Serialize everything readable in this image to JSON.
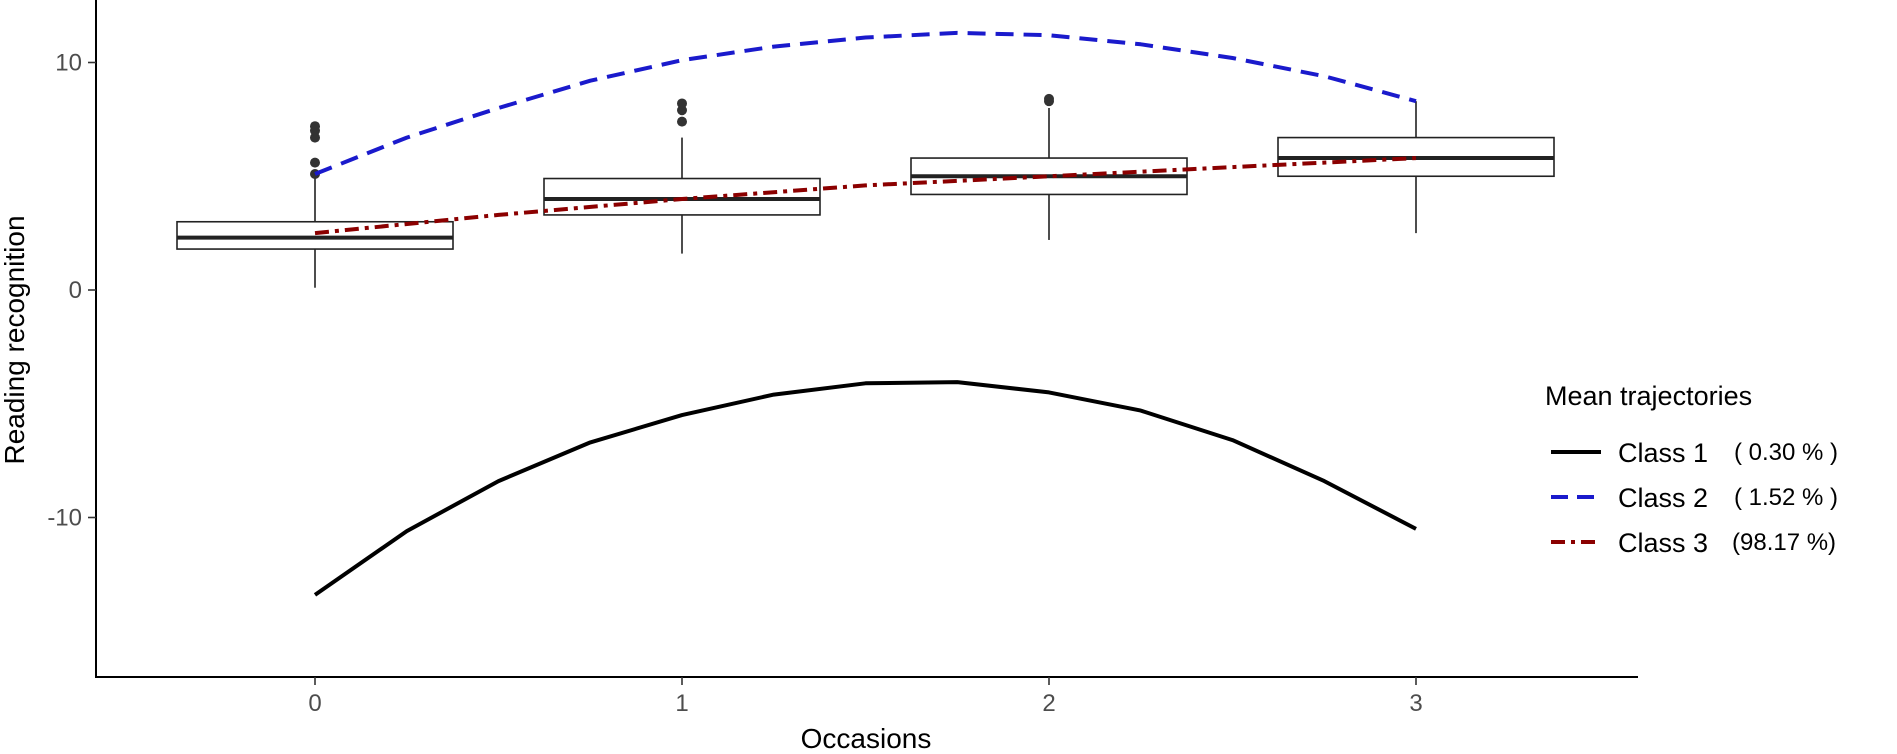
{
  "chart_data": {
    "type": "line",
    "xlabel": "Occasions",
    "ylabel": "Reading recognition",
    "x_ticks": [
      0,
      1,
      2,
      3
    ],
    "y_ticks": [
      -10,
      0,
      10
    ],
    "xlim": [
      -0.6,
      3.6
    ],
    "ylim": [
      -17,
      12.6
    ],
    "grid": false,
    "legend_position": "right",
    "legend_title": "Mean trajectories",
    "series": [
      {
        "name": "Class 1",
        "percent": "( 0.30 % )",
        "style": "solid",
        "color": "#000000",
        "x": [
          0,
          0.25,
          0.5,
          0.75,
          1,
          1.25,
          1.5,
          1.75,
          2,
          2.25,
          2.5,
          2.75,
          3
        ],
        "values": [
          -13.4,
          -10.6,
          -8.4,
          -6.7,
          -5.5,
          -4.6,
          -4.1,
          -4.05,
          -4.5,
          -5.3,
          -6.6,
          -8.4,
          -10.5
        ]
      },
      {
        "name": "Class 2",
        "percent": "( 1.52 % )",
        "style": "dashed",
        "color": "#1a1acc",
        "x": [
          0,
          0.25,
          0.5,
          0.75,
          1,
          1.25,
          1.5,
          1.75,
          2,
          2.25,
          2.5,
          2.75,
          3
        ],
        "values": [
          5.1,
          6.7,
          8.0,
          9.2,
          10.1,
          10.7,
          11.1,
          11.3,
          11.2,
          10.8,
          10.2,
          9.4,
          8.3
        ]
      },
      {
        "name": "Class 3",
        "percent": "(98.17 %)",
        "style": "dotdash",
        "color": "#8b0000",
        "x": [
          0,
          0.5,
          1,
          1.5,
          2,
          2.5,
          3
        ],
        "values": [
          2.5,
          3.3,
          4.0,
          4.6,
          5.0,
          5.4,
          5.8
        ]
      }
    ],
    "boxplots": [
      {
        "x": 0,
        "whisker_low": 0.1,
        "q1": 1.8,
        "median": 2.3,
        "q3": 3.0,
        "whisker_high": 5.0,
        "outliers": [
          5.1,
          5.6,
          6.7,
          7.0,
          7.2
        ]
      },
      {
        "x": 1,
        "whisker_low": 1.6,
        "q1": 3.3,
        "median": 4.0,
        "q3": 4.9,
        "whisker_high": 6.7,
        "outliers": [
          7.4,
          7.9,
          8.2
        ]
      },
      {
        "x": 2,
        "whisker_low": 2.2,
        "q1": 4.2,
        "median": 5.0,
        "q3": 5.8,
        "whisker_high": 8.0,
        "outliers": [
          8.3,
          8.4
        ]
      },
      {
        "x": 3,
        "whisker_low": 2.5,
        "q1": 5.0,
        "median": 5.8,
        "q3": 6.7,
        "whisker_high": 8.3,
        "outliers": []
      }
    ]
  }
}
